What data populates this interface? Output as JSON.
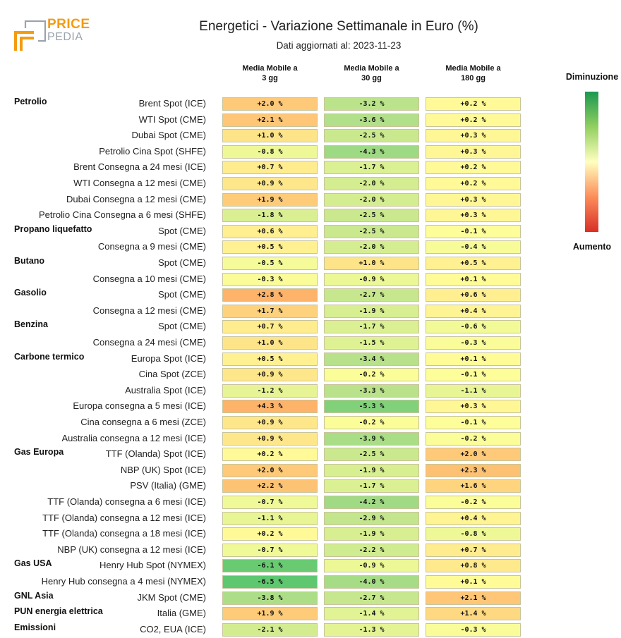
{
  "logo": {
    "line1": "PRICE",
    "line2": "PEDIA"
  },
  "title": "Energetici - Variazione Settimanale in Euro (%)",
  "subtitle": "Dati aggiornati al: 2023-11-23",
  "legend": {
    "top_label": "Diminuzione",
    "bottom_label": "Aumento",
    "colors": [
      "#1a9850",
      "#91cf60",
      "#ffffbf",
      "#fc8d59",
      "#d73027"
    ]
  },
  "chart_data": {
    "type": "heatmap",
    "title": "Energetici - Variazione Settimanale in Euro (%)",
    "columns": [
      {
        "line1": "Media Mobile a",
        "line2": "3 gg"
      },
      {
        "line1": "Media Mobile a",
        "line2": "30 gg"
      },
      {
        "line1": "Media Mobile a",
        "line2": "180 gg"
      }
    ],
    "unit": "%",
    "rows": [
      {
        "group": "Petrolio",
        "label": "Brent Spot (ICE)",
        "values": [
          2.0,
          -3.2,
          0.2
        ]
      },
      {
        "group": "",
        "label": "WTI Spot (CME)",
        "values": [
          2.1,
          -3.6,
          0.2
        ]
      },
      {
        "group": "",
        "label": "Dubai Spot (CME)",
        "values": [
          1.0,
          -2.5,
          0.3
        ]
      },
      {
        "group": "",
        "label": "Petrolio Cina Spot (SHFE)",
        "values": [
          -0.8,
          -4.3,
          0.3
        ]
      },
      {
        "group": "",
        "label": "Brent Consegna a 24 mesi (ICE)",
        "values": [
          0.7,
          -1.7,
          0.2
        ]
      },
      {
        "group": "",
        "label": "WTI Consegna a 12 mesi (CME)",
        "values": [
          0.9,
          -2.0,
          0.2
        ]
      },
      {
        "group": "",
        "label": "Dubai Consegna a 12 mesi (CME)",
        "values": [
          1.9,
          -2.0,
          0.3
        ]
      },
      {
        "group": "",
        "label": "Petrolio Cina Consegna a 6 mesi (SHFE)",
        "values": [
          -1.8,
          -2.5,
          0.3
        ]
      },
      {
        "group": "Propano liquefatto",
        "label": "Spot (CME)",
        "values": [
          0.6,
          -2.5,
          -0.1
        ]
      },
      {
        "group": "",
        "label": "Consegna a 9 mesi (CME)",
        "values": [
          0.5,
          -2.0,
          -0.4
        ]
      },
      {
        "group": "Butano",
        "label": "Spot (CME)",
        "values": [
          -0.5,
          1.0,
          0.5
        ]
      },
      {
        "group": "",
        "label": "Consegna a 10 mesi (CME)",
        "values": [
          -0.3,
          -0.9,
          0.1
        ]
      },
      {
        "group": "Gasolio",
        "label": "Spot (CME)",
        "values": [
          2.8,
          -2.7,
          0.6
        ]
      },
      {
        "group": "",
        "label": "Consegna a 12 mesi (CME)",
        "values": [
          1.7,
          -1.9,
          0.4
        ]
      },
      {
        "group": "Benzina",
        "label": "Spot (CME)",
        "values": [
          0.7,
          -1.7,
          -0.6
        ]
      },
      {
        "group": "",
        "label": "Consegna a 24 mesi (CME)",
        "values": [
          1.0,
          -1.5,
          -0.3
        ]
      },
      {
        "group": "Carbone termico",
        "label": "Europa Spot (ICE)",
        "values": [
          0.5,
          -3.4,
          0.1
        ]
      },
      {
        "group": "",
        "label": "Cina Spot (ZCE)",
        "values": [
          0.9,
          -0.2,
          -0.1
        ]
      },
      {
        "group": "",
        "label": "Australia Spot (ICE)",
        "values": [
          -1.2,
          -3.3,
          -1.1
        ]
      },
      {
        "group": "",
        "label": "Europa consegna a 5 mesi (ICE)",
        "values": [
          4.3,
          -5.3,
          0.3
        ]
      },
      {
        "group": "",
        "label": "Cina consegna a 6 mesi (ZCE)",
        "values": [
          0.9,
          -0.2,
          -0.1
        ]
      },
      {
        "group": "",
        "label": "Australia consegna a 12 mesi (ICE)",
        "values": [
          0.9,
          -3.9,
          -0.2
        ]
      },
      {
        "group": "Gas Europa",
        "label": "TTF (Olanda) Spot (ICE)",
        "values": [
          0.2,
          -2.5,
          2.0
        ]
      },
      {
        "group": "",
        "label": "NBP (UK) Spot (ICE)",
        "values": [
          2.0,
          -1.9,
          2.3
        ]
      },
      {
        "group": "",
        "label": "PSV (Italia) (GME)",
        "values": [
          2.2,
          -1.7,
          1.6
        ]
      },
      {
        "group": "",
        "label": "TTF (Olanda) consegna a 6 mesi (ICE)",
        "values": [
          -0.7,
          -4.2,
          -0.2
        ]
      },
      {
        "group": "",
        "label": "TTF (Olanda) consegna a 12 mesi (ICE)",
        "values": [
          -1.1,
          -2.9,
          0.4
        ]
      },
      {
        "group": "",
        "label": "TTF (Olanda) consegna a 18 mesi (ICE)",
        "values": [
          0.2,
          -1.9,
          -0.8
        ]
      },
      {
        "group": "",
        "label": "NBP (UK) consegna a 12 mesi (ICE)",
        "values": [
          -0.7,
          -2.2,
          0.7
        ]
      },
      {
        "group": "Gas USA",
        "label": "Henry Hub Spot (NYMEX)",
        "values": [
          -6.1,
          -0.9,
          0.8
        ]
      },
      {
        "group": "",
        "label": "Henry Hub consegna a 4 mesi (NYMEX)",
        "values": [
          -6.5,
          -4.0,
          0.1
        ]
      },
      {
        "group": "GNL Asia",
        "label": "JKM Spot (CME)",
        "values": [
          -3.8,
          -2.7,
          2.1
        ]
      },
      {
        "group": "PUN energia elettrica",
        "label": "Italia (GME)",
        "values": [
          1.9,
          -1.4,
          1.4
        ]
      },
      {
        "group": "Emissioni",
        "label": "CO2, EUA (ICE)",
        "values": [
          -2.1,
          -1.3,
          -0.3
        ]
      }
    ]
  }
}
